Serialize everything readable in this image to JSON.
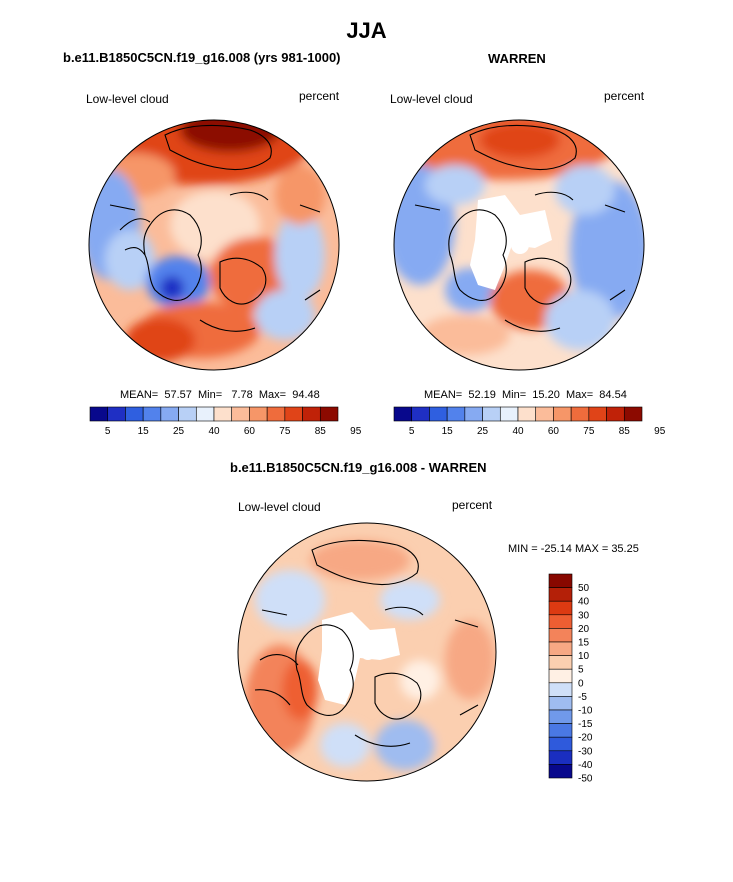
{
  "figure": {
    "title": "JJA"
  },
  "colors": {
    "seq": [
      "#08088c",
      "#1f2fc4",
      "#2f5fe0",
      "#5282ec",
      "#86aaf2",
      "#b8d0f6",
      "#e8f1fc",
      "#fde0cc",
      "#fbbc9a",
      "#f69668",
      "#ef6c3c",
      "#e04418",
      "#c02208",
      "#8c0a00"
    ],
    "diff": [
      "#08088c",
      "#1a2ec0",
      "#2f5adc",
      "#4a78e4",
      "#7099ea",
      "#9fbcf0",
      "#cfdff8",
      "#fff0e4",
      "#fbcfb0",
      "#f7a884",
      "#f3835a",
      "#ee5e32",
      "#dc3a12",
      "#b42008",
      "#880800"
    ],
    "land": "#000000",
    "missing": "#ffffff"
  },
  "chart_data": [
    {
      "type": "heatmap",
      "projection": "polar-stereographic-north",
      "title": "b.e11.B1850C5CN.f19_g16.008 (yrs 981-1000)",
      "left_label": "Low-level cloud",
      "right_label": "percent",
      "stats": {
        "mean_label": "MEAN=",
        "mean": "57.57",
        "min_label": "Min=",
        "min": "7.78",
        "max_label": "Max=",
        "max": "94.48"
      },
      "colorbar": {
        "orientation": "horizontal",
        "levels": [
          5,
          10,
          15,
          20,
          25,
          30,
          40,
          50,
          60,
          70,
          75,
          80,
          85,
          90,
          95
        ],
        "tick_labels": [
          "5",
          "15",
          "25",
          "40",
          "60",
          "75",
          "85",
          "95"
        ]
      }
    },
    {
      "type": "heatmap",
      "projection": "polar-stereographic-north",
      "title": "WARREN",
      "left_label": "Low-level cloud",
      "right_label": "percent",
      "stats": {
        "mean_label": "MEAN=",
        "mean": "52.19",
        "min_label": "Min=",
        "min": "15.20",
        "max_label": "Max=",
        "max": "84.54"
      },
      "colorbar": {
        "orientation": "horizontal",
        "levels": [
          5,
          10,
          15,
          20,
          25,
          30,
          40,
          50,
          60,
          70,
          75,
          80,
          85,
          90,
          95
        ],
        "tick_labels": [
          "5",
          "15",
          "25",
          "40",
          "60",
          "75",
          "85",
          "95"
        ]
      }
    },
    {
      "type": "heatmap",
      "projection": "polar-stereographic-north",
      "title": "b.e11.B1850C5CN.f19_g16.008 - WARREN",
      "left_label": "Low-level cloud",
      "right_label": "percent",
      "stats_text": "MIN = -25.14 MAX =  35.25",
      "colorbar": {
        "orientation": "vertical",
        "levels": [
          50,
          40,
          30,
          20,
          15,
          10,
          5,
          0,
          -5,
          -10,
          -15,
          -20,
          -30,
          -40,
          -50
        ],
        "tick_labels": [
          "50",
          "40",
          "30",
          "20",
          "15",
          "10",
          "5",
          "0",
          "-5",
          "-10",
          "-15",
          "-20",
          "-30",
          "-40",
          "-50"
        ]
      }
    }
  ]
}
